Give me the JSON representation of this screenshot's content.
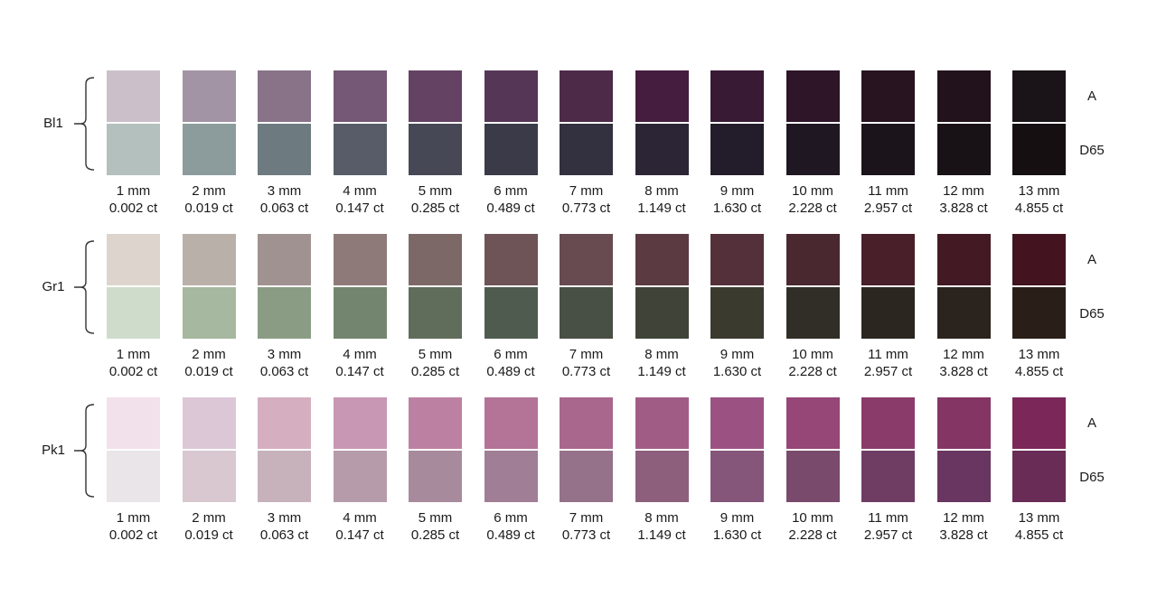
{
  "illuminants": {
    "top": "A",
    "bottom": "D65"
  },
  "sizes": [
    {
      "size": "1 mm",
      "carat": "0.002 ct"
    },
    {
      "size": "2 mm",
      "carat": "0.019 ct"
    },
    {
      "size": "3 mm",
      "carat": "0.063 ct"
    },
    {
      "size": "4 mm",
      "carat": "0.147 ct"
    },
    {
      "size": "5 mm",
      "carat": "0.285 ct"
    },
    {
      "size": "6 mm",
      "carat": "0.489 ct"
    },
    {
      "size": "7 mm",
      "carat": "0.773 ct"
    },
    {
      "size": "8 mm",
      "carat": "1.149 ct"
    },
    {
      "size": "9 mm",
      "carat": "1.630 ct"
    },
    {
      "size": "10 mm",
      "carat": "2.228 ct"
    },
    {
      "size": "11 mm",
      "carat": "2.957 ct"
    },
    {
      "size": "12 mm",
      "carat": "3.828 ct"
    },
    {
      "size": "13 mm",
      "carat": "4.855 ct"
    }
  ],
  "groups": [
    {
      "label": "Bl1",
      "colors_a": [
        "#cbc0c9",
        "#a394a5",
        "#887389",
        "#745875",
        "#644264",
        "#553657",
        "#4d2a48",
        "#451d3e",
        "#381a34",
        "#2e1528",
        "#271420",
        "#22121b",
        "#1a1419"
      ],
      "colors_d65": [
        "#b4c0bd",
        "#8c9c9c",
        "#6d7b80",
        "#575c68",
        "#464856",
        "#3b3a48",
        "#33303f",
        "#2b2535",
        "#231d2b",
        "#1f1722",
        "#1b141b",
        "#181216",
        "#160f12"
      ]
    },
    {
      "label": "Gr1",
      "colors_a": [
        "#ddd5cd",
        "#b9b0aa",
        "#a09290",
        "#8e7b79",
        "#7d6868",
        "#6e5357",
        "#684a51",
        "#5c3a42",
        "#54313a",
        "#4a2830",
        "#491f2a",
        "#431a24",
        "#43141f"
      ],
      "colors_d65": [
        "#cfdccb",
        "#a6b89f",
        "#8a9d84",
        "#73856e",
        "#5f6d5a",
        "#4f5b4f",
        "#484f45",
        "#404438",
        "#3a3a2f",
        "#302e27",
        "#2b2620",
        "#2a231e",
        "#2a1e19"
      ]
    },
    {
      "label": "Pk1",
      "colors_a": [
        "#f2e1ea",
        "#dcc7d7",
        "#d5aebf",
        "#c797b4",
        "#bc81a2",
        "#b37498",
        "#a9678e",
        "#a15c86",
        "#9b5283",
        "#964677",
        "#8b3b6a",
        "#853564",
        "#7b2759"
      ],
      "colors_d65": [
        "#e9e5e9",
        "#d9c8cf",
        "#c7b2bb",
        "#b69cab",
        "#a88a9d",
        "#a07e95",
        "#95728a",
        "#8d5f7d",
        "#85567a",
        "#7a4a6d",
        "#6f3d64",
        "#693561",
        "#692c57"
      ]
    }
  ]
}
